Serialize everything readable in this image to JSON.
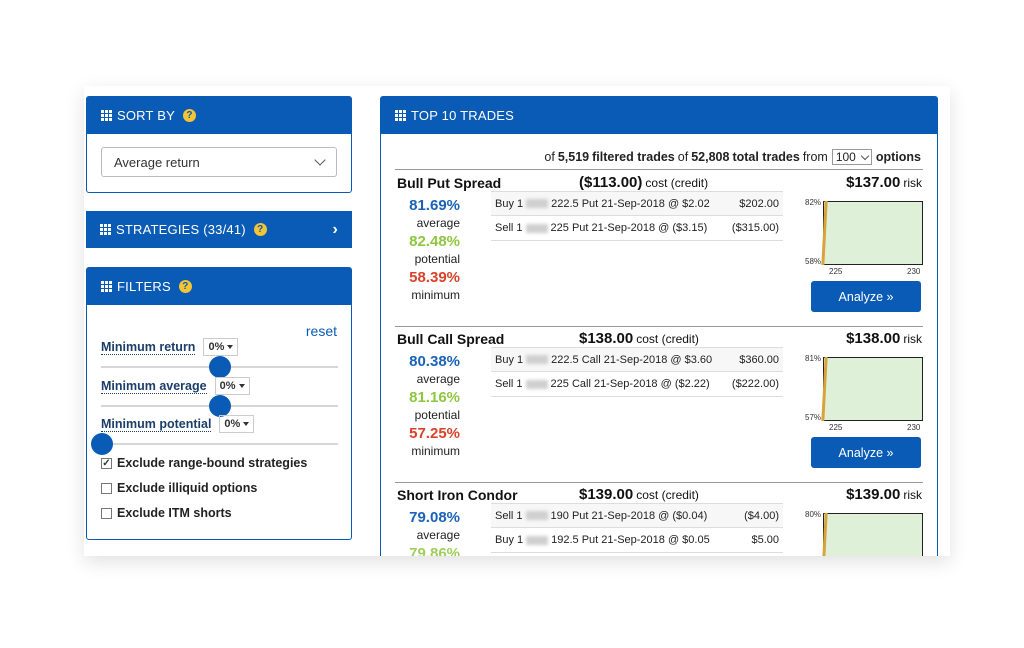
{
  "sort": {
    "title": "SORT BY",
    "selected": "Average return"
  },
  "strategies": {
    "title": "STRATEGIES (33/41)"
  },
  "filters": {
    "title": "FILTERS",
    "reset": "reset",
    "min_return": {
      "label": "Minimum return",
      "value": "0%"
    },
    "min_average": {
      "label": "Minimum average",
      "value": "0%"
    },
    "min_potential": {
      "label": "Minimum potential",
      "value": "0%"
    },
    "checks": [
      {
        "label": "Exclude range-bound strategies",
        "checked": true
      },
      {
        "label": "Exclude illiquid options",
        "checked": false
      },
      {
        "label": "Exclude ITM shorts",
        "checked": false
      }
    ]
  },
  "top": {
    "title": "TOP 10 TRADES",
    "summary": {
      "of1": "of",
      "filtered": "5,519",
      "filtered_label": "filtered trades",
      "of2": "of",
      "total": "52,808",
      "total_label": "total trades",
      "from": "from",
      "count": "100",
      "options": "options"
    }
  },
  "trades": [
    {
      "name": "Bull Put Spread",
      "cost": "($113.00)",
      "cost_label": "cost (credit)",
      "risk": "$137.00",
      "risk_label": "risk",
      "average": "81.69%",
      "average_label": "average",
      "potential": "82.48%",
      "potential_label": "potential",
      "minimum": "58.39%",
      "minimum_label": "minimum",
      "legs": [
        {
          "action": "Buy 1",
          "detail": "222.5 Put 21-Sep-2018 @ $2.02",
          "amount": "$202.00"
        },
        {
          "action": "Sell 1",
          "detail": "225 Put 21-Sep-2018 @ ($3.15)",
          "amount": "($315.00)"
        }
      ],
      "chart": {
        "ytop": "82%",
        "ybot": "58%",
        "x1": "225",
        "x2": "230"
      },
      "analyze": "Analyze »"
    },
    {
      "name": "Bull Call Spread",
      "cost": "$138.00",
      "cost_label": "cost (credit)",
      "risk": "$138.00",
      "risk_label": "risk",
      "average": "80.38%",
      "average_label": "average",
      "potential": "81.16%",
      "potential_label": "potential",
      "minimum": "57.25%",
      "minimum_label": "minimum",
      "legs": [
        {
          "action": "Buy 1",
          "detail": "222.5 Call 21-Sep-2018 @ $3.60",
          "amount": "$360.00"
        },
        {
          "action": "Sell 1",
          "detail": "225 Call 21-Sep-2018 @ ($2.22)",
          "amount": "($222.00)"
        }
      ],
      "chart": {
        "ytop": "81%",
        "ybot": "57%",
        "x1": "225",
        "x2": "230"
      },
      "analyze": "Analyze »"
    },
    {
      "name": "Short Iron Condor",
      "cost": "$139.00",
      "cost_label": "cost (credit)",
      "risk": "$139.00",
      "risk_label": "risk",
      "average": "79.08%",
      "average_label": "average",
      "potential": "",
      "potential_label": "",
      "minimum": "",
      "minimum_label": "",
      "legs": [
        {
          "action": "Sell 1",
          "detail": "190 Put 21-Sep-2018 @ ($0.04)",
          "amount": "($4.00)"
        },
        {
          "action": "Buy 1",
          "detail": "192.5 Put 21-Sep-2018 @ $0.05",
          "amount": "$5.00"
        }
      ],
      "chart": {
        "ytop": "80%",
        "ybot": "",
        "x1": "",
        "x2": ""
      },
      "analyze": ""
    }
  ],
  "colors": {
    "primary": "#0a5bb5",
    "average": "#1a63b8",
    "potential": "#8ec63f",
    "minimum": "#d9422b",
    "help": "#f3c433"
  }
}
